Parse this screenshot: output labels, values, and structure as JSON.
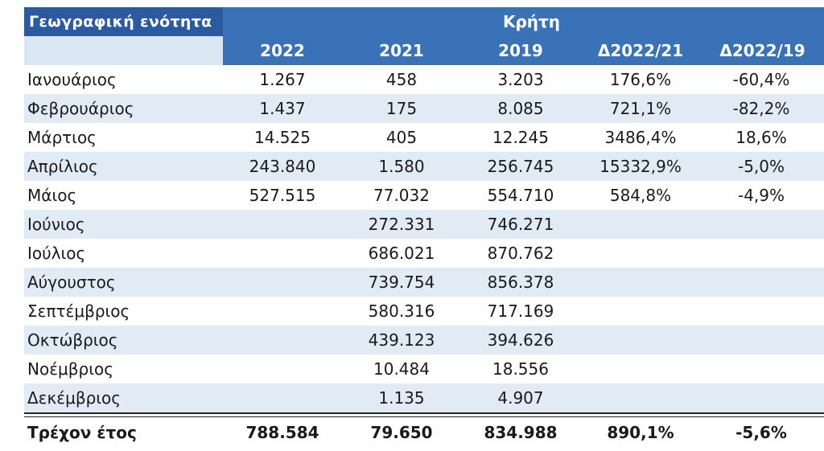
{
  "header": {
    "label": "Γεωγραφική ενότητα",
    "region": "Κρήτη",
    "columns": [
      "2022",
      "2021",
      "2019",
      "Δ2022/21",
      "Δ2022/19"
    ]
  },
  "rows": [
    [
      "Ιανουάριος",
      "1.267",
      "458",
      "3.203",
      "176,6%",
      "-60,4%"
    ],
    [
      "Φεβρουάριος",
      "1.437",
      "175",
      "8.085",
      "721,1%",
      "-82,2%"
    ],
    [
      "Μάρτιος",
      "14.525",
      "405",
      "12.245",
      "3486,4%",
      "18,6%"
    ],
    [
      "Απρίλιος",
      "243.840",
      "1.580",
      "256.745",
      "15332,9%",
      "-5,0%"
    ],
    [
      "Μάιος",
      "527.515",
      "77.032",
      "554.710",
      "584,8%",
      "-4,9%"
    ],
    [
      "Ιούνιος",
      "",
      "272.331",
      "746.271",
      "",
      ""
    ],
    [
      "Ιούλιος",
      "",
      "686.021",
      "870.762",
      "",
      ""
    ],
    [
      "Αύγουστος",
      "",
      "739.754",
      "856.378",
      "",
      ""
    ],
    [
      "Σεπτέμβριος",
      "",
      "580.316",
      "717.169",
      "",
      ""
    ],
    [
      "Οκτώβριος",
      "",
      "439.123",
      "394.626",
      "",
      ""
    ],
    [
      "Νοέμβριος",
      "",
      "10.484",
      "18.556",
      "",
      ""
    ],
    [
      "Δεκέμβριος",
      "",
      "1.135",
      "4.907",
      "",
      ""
    ]
  ],
  "total": [
    "Τρέχον έτος",
    "788.584",
    "79.650",
    "834.988",
    "890,1%",
    "-5,6%"
  ]
}
